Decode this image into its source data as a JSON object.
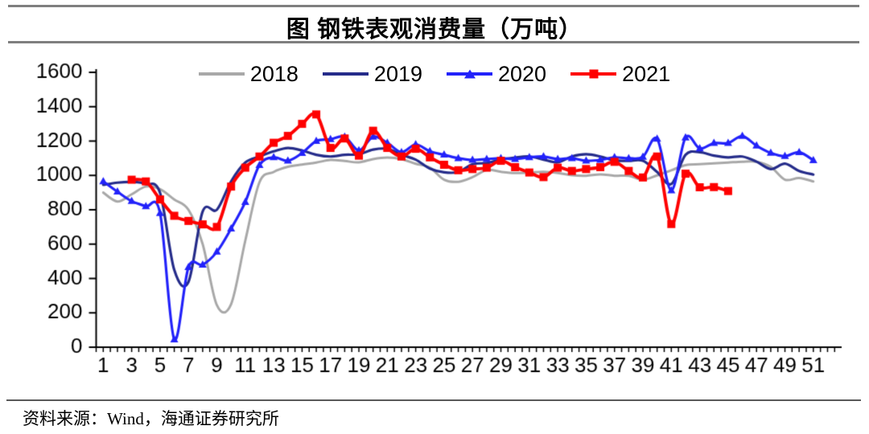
{
  "title": "图  钢铁表观消费量（万吨）",
  "source_note": "资料来源：Wind，海通证券研究所",
  "colors": {
    "series_2018": "#a8a8a8",
    "series_2019": "#252c8a",
    "series_2020": "#2222fa",
    "series_2021": "#fe0000",
    "axis": "#000000",
    "rule": "#7f7f7f"
  },
  "chart_data": {
    "type": "line",
    "title": "图 钢铁表观消费量（万吨）",
    "unit": "万吨",
    "legend_position": "top",
    "grid": false,
    "y_axis": {
      "min": 0,
      "max": 1600,
      "tick_step": 200,
      "ticks": [
        0,
        200,
        400,
        600,
        800,
        1000,
        1200,
        1400,
        1600
      ]
    },
    "x_axis": {
      "tick_labels": [
        1,
        3,
        5,
        7,
        9,
        11,
        13,
        15,
        17,
        19,
        21,
        23,
        25,
        27,
        29,
        31,
        33,
        35,
        37,
        39,
        41,
        43,
        45,
        47,
        49,
        51
      ],
      "total_weeks": 51
    },
    "series": [
      {
        "name": "2018",
        "color": "#a8a8a8",
        "marker": "none",
        "line_width": 3,
        "start_week": 1,
        "values": [
          900,
          848,
          890,
          935,
          920,
          860,
          800,
          600,
          245,
          250,
          620,
          960,
          1020,
          1050,
          1063,
          1075,
          1090,
          1084,
          1076,
          1095,
          1104,
          1095,
          1068,
          1045,
          975,
          963,
          990,
          1032,
          1021,
          1014,
          1016,
          1021,
          1014,
          1001,
          998,
          1006,
          998,
          998,
          975,
          1000,
          1030,
          1060,
          1065,
          1070,
          1075,
          1080,
          1080,
          1050,
          975,
          985,
          965
        ]
      },
      {
        "name": "2019",
        "color": "#252c8a",
        "marker": "none",
        "line_width": 3.2,
        "start_week": 1,
        "values": [
          945,
          958,
          962,
          950,
          898,
          450,
          380,
          790,
          800,
          965,
          1075,
          1110,
          1140,
          1160,
          1145,
          1120,
          1110,
          1120,
          1123,
          1150,
          1155,
          1120,
          1092,
          1040,
          1018,
          1020,
          1065,
          1072,
          1092,
          1104,
          1110,
          1092,
          1076,
          1110,
          1123,
          1110,
          1087,
          1085,
          1085,
          1020,
          950,
          1120,
          1135,
          1115,
          1105,
          1110,
          1080,
          1037,
          1068,
          1026,
          1005
        ]
      },
      {
        "name": "2020",
        "color": "#2222fa",
        "marker": "triangle",
        "line_width": 3.2,
        "start_week": 1,
        "values": [
          965,
          905,
          850,
          820,
          780,
          45,
          465,
          480,
          555,
          690,
          845,
          1060,
          1105,
          1085,
          1130,
          1200,
          1210,
          1225,
          1145,
          1225,
          1190,
          1135,
          1180,
          1140,
          1120,
          1100,
          1090,
          1095,
          1100,
          1095,
          1105,
          1110,
          1095,
          1100,
          1085,
          1090,
          1105,
          1100,
          1108,
          1213,
          912,
          1220,
          1157,
          1188,
          1188,
          1229,
          1173,
          1131,
          1112,
          1135,
          1088
        ]
      },
      {
        "name": "2021",
        "color": "#fe0000",
        "marker": "square",
        "line_width": 4,
        "start_week": 3,
        "values": [
          975,
          965,
          860,
          765,
          735,
          715,
          700,
          935,
          1045,
          1110,
          1190,
          1230,
          1300,
          1355,
          1160,
          1215,
          1115,
          1260,
          1160,
          1110,
          1155,
          1105,
          1062,
          1030,
          1037,
          1045,
          1085,
          1048,
          1017,
          990,
          1045,
          1026,
          1037,
          1048,
          1079,
          1026,
          988,
          1110,
          717,
          1010,
          931,
          932,
          909
        ]
      }
    ]
  }
}
